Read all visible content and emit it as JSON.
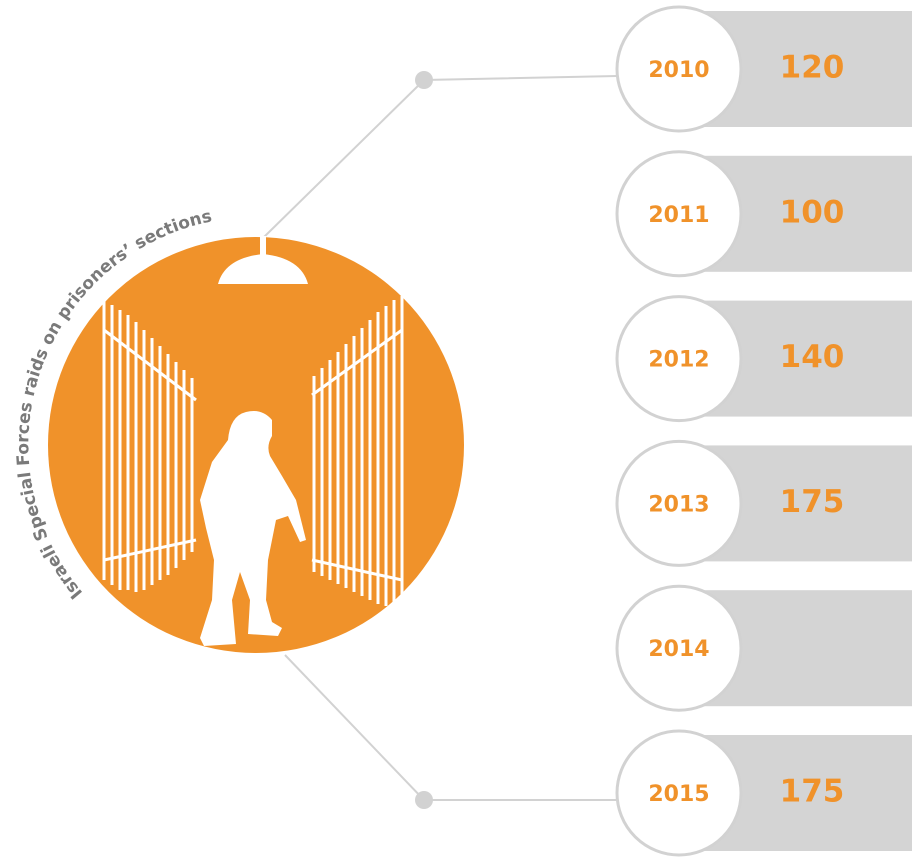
{
  "title": "Israeli Special Forces raids on prisoners’ sections",
  "items": [
    {
      "year": 2010,
      "value": 120
    },
    {
      "year": 2011,
      "value": 100
    },
    {
      "year": 2012,
      "value": 140
    },
    {
      "year": 2013,
      "value": 175
    },
    {
      "year": 2014
    },
    {
      "year": 2015,
      "value": 175
    }
  ]
}
